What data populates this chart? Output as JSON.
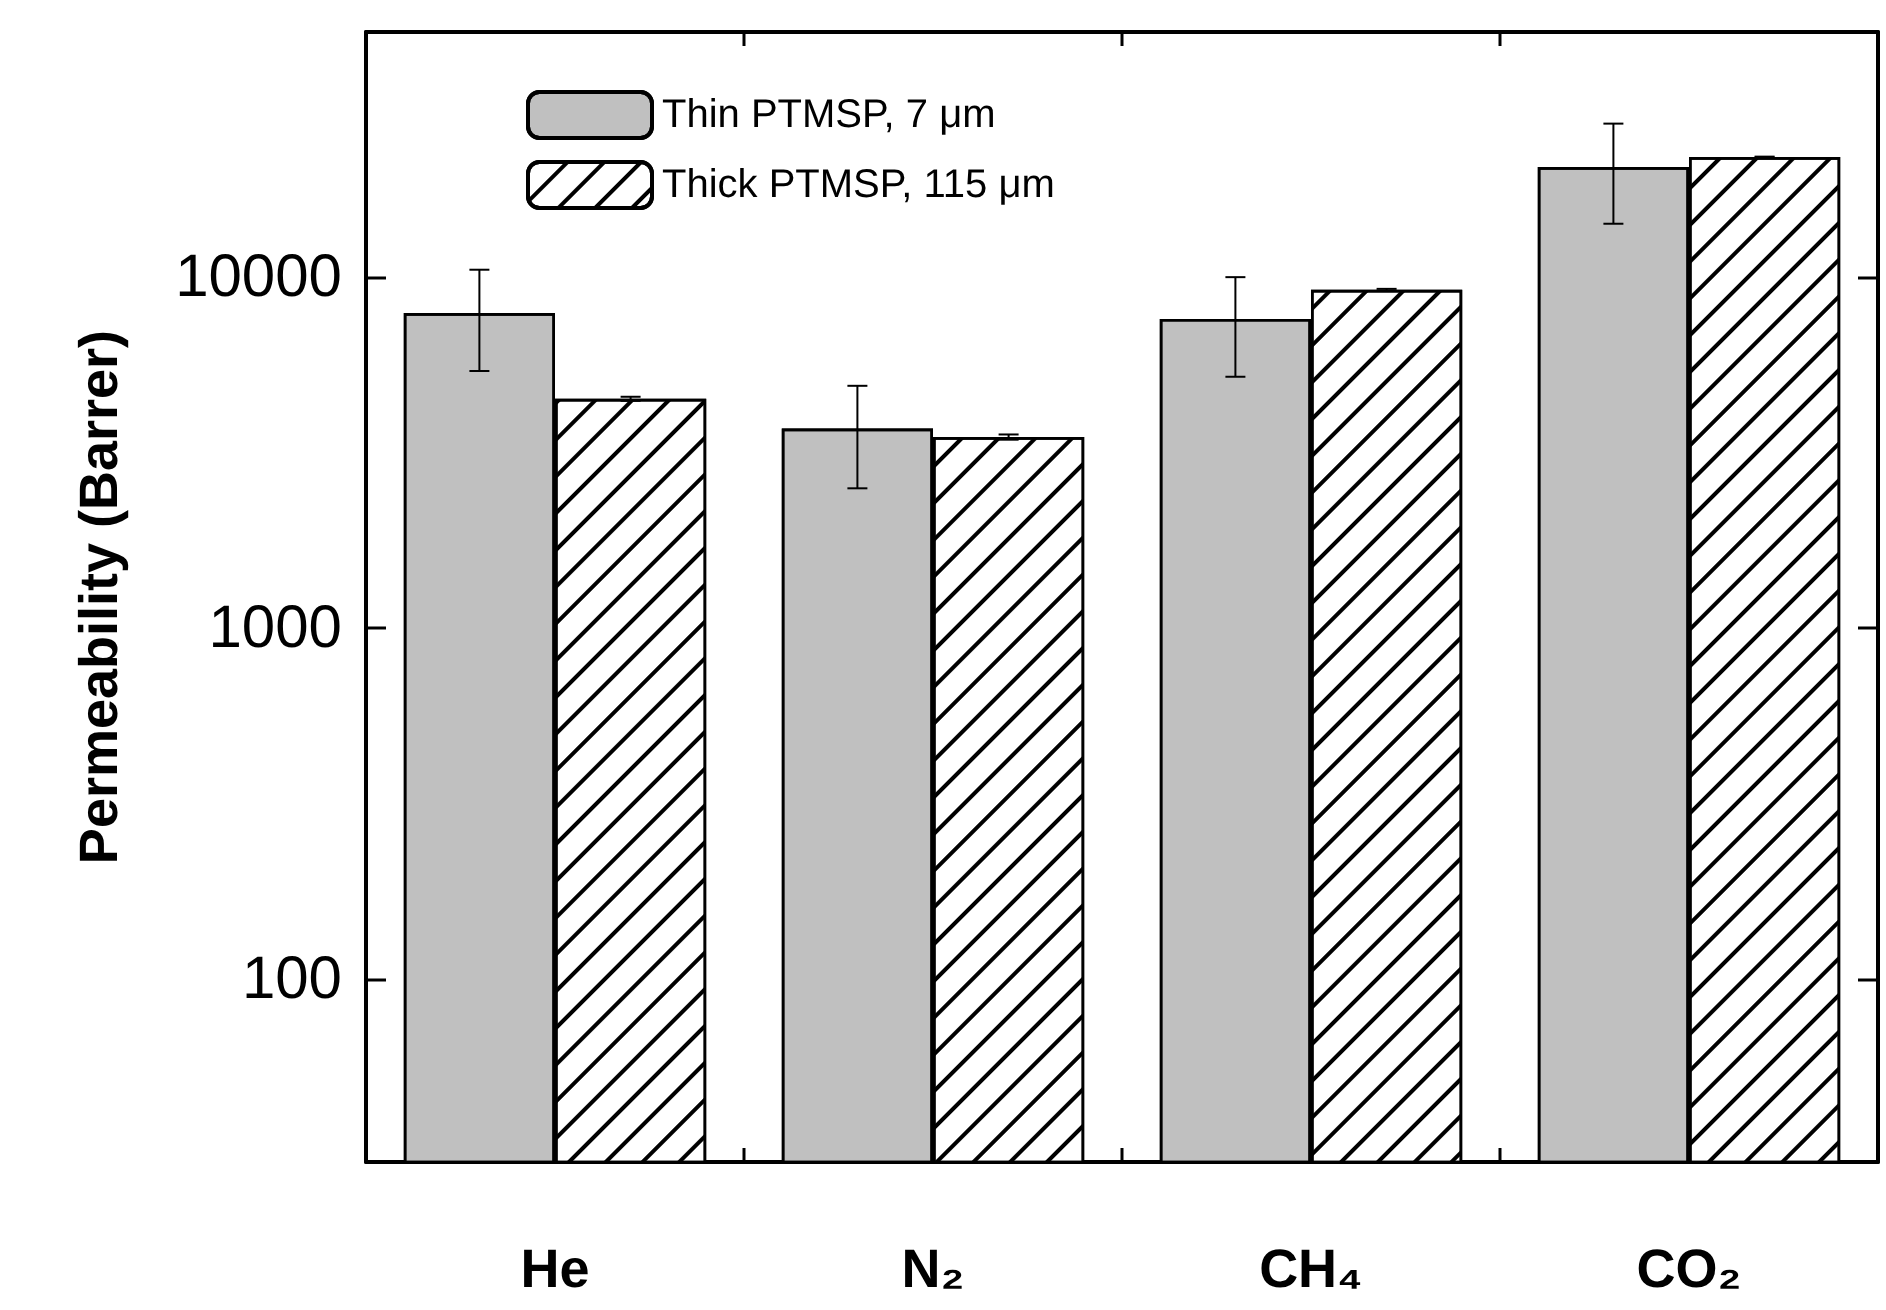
{
  "chart_data": {
    "type": "bar",
    "ylabel": "Permeability (Barrer)",
    "categories": [
      "He",
      "N₂",
      "CH₄",
      "CO₂"
    ],
    "series": [
      {
        "name": "Thin PTMSP, 7 μm",
        "color": "#c0c0c0",
        "values": [
          7900,
          3700,
          7600,
          20600
        ],
        "errors": [
          [
            5400,
            10500
          ],
          [
            2500,
            4900
          ],
          [
            5200,
            10000
          ],
          [
            14200,
            27400
          ]
        ]
      },
      {
        "name": "Thick PTMSP, 115 μm",
        "color": "#ffffff",
        "values": [
          4500,
          3500,
          9200,
          22000
        ],
        "errors": [
          60,
          60,
          60,
          60
        ]
      }
    ],
    "log": "y",
    "ylim": [
      30,
      50000
    ],
    "yticks": [
      100,
      1000,
      10000
    ],
    "grid": false,
    "legend": "top left"
  }
}
